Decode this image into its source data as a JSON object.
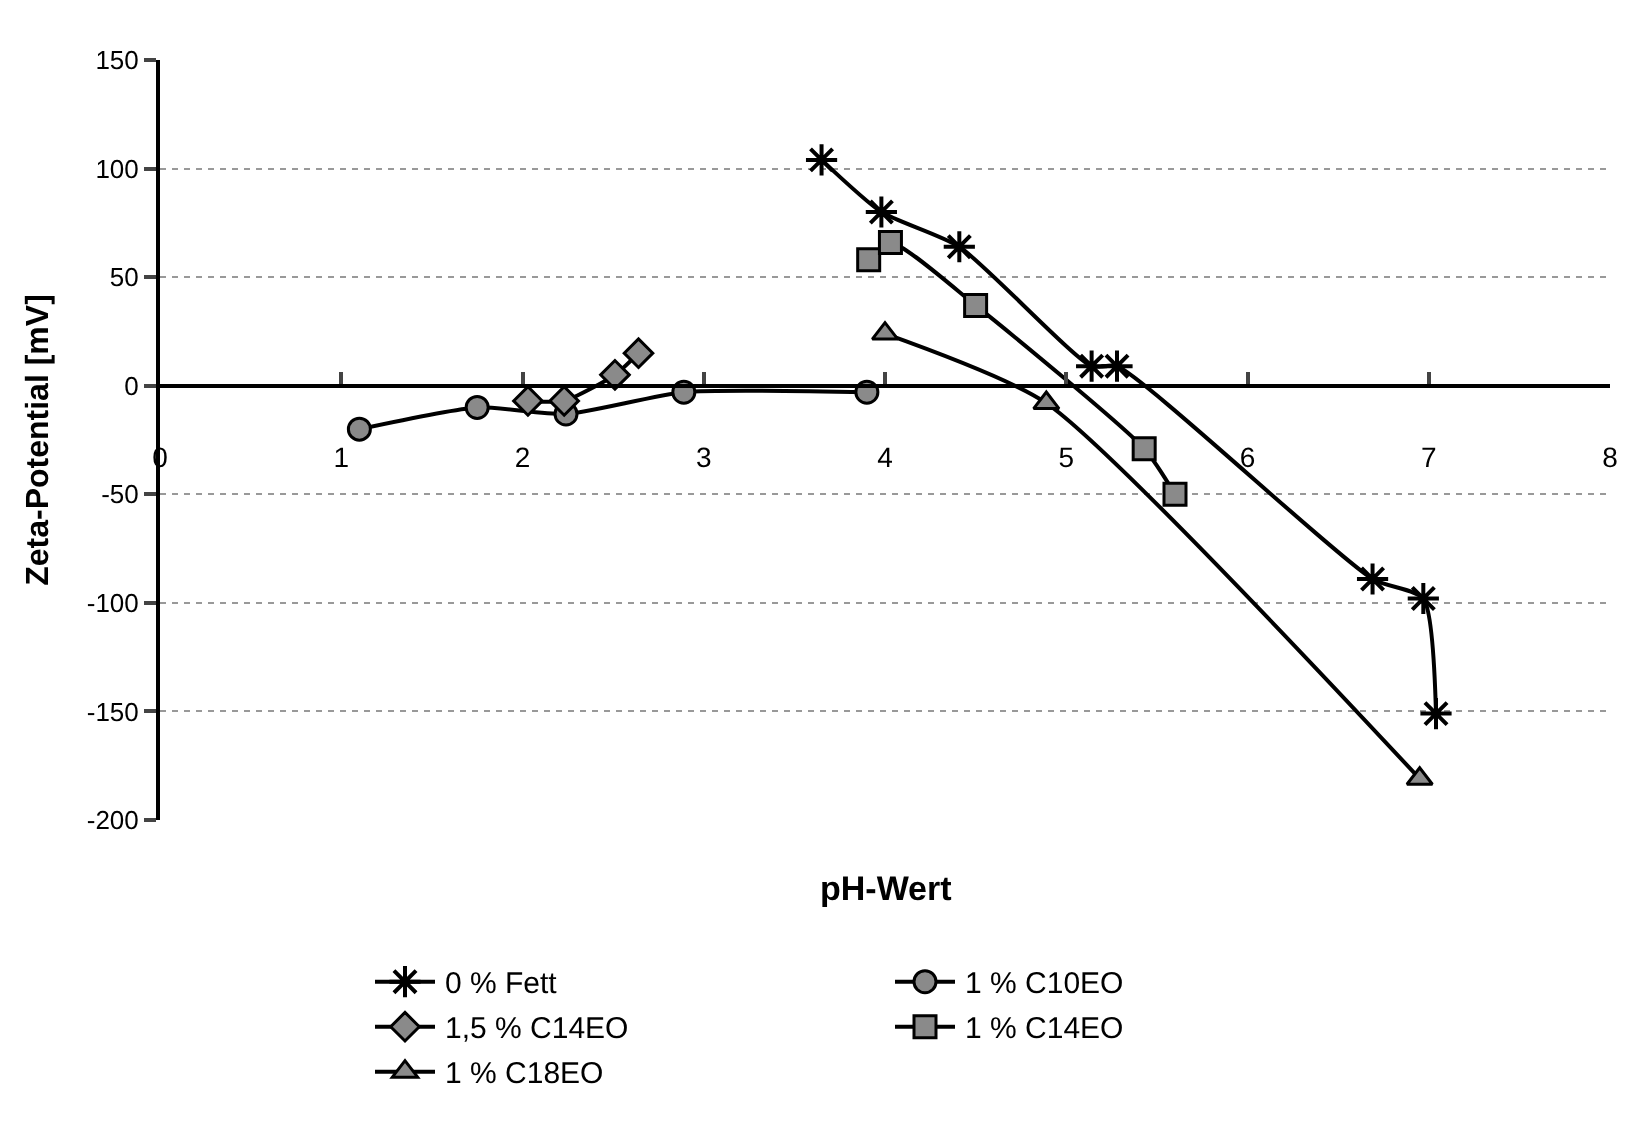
{
  "chart_data": {
    "type": "line",
    "xlabel": "pH-Wert",
    "ylabel": "Zeta-Potential [mV]",
    "xlim": [
      0,
      8
    ],
    "xticks": [
      0,
      1,
      2,
      3,
      4,
      5,
      6,
      7,
      8
    ],
    "ylim": [
      -200,
      150
    ],
    "yticks": [
      -200,
      -150,
      -100,
      -50,
      0,
      50,
      100,
      150
    ],
    "grid": "y",
    "legend": "bottom",
    "series": [
      {
        "name": "0 % Fett",
        "color": "#000000",
        "marker": "cross",
        "x": [
          3.65,
          3.98,
          4.41,
          5.14,
          5.28,
          6.69,
          6.97,
          7.04
        ],
        "values": [
          104,
          80,
          64,
          9,
          9,
          -89,
          -98,
          -151
        ]
      },
      {
        "name": "1 % C10EO",
        "color": "#000000",
        "marker": "circle",
        "x": [
          1.1,
          1.75,
          2.24,
          2.89,
          3.9
        ],
        "values": [
          -20,
          -10,
          -13,
          -3,
          -3
        ]
      },
      {
        "name": "1,5 % C14EO",
        "color": "#000000",
        "marker": "diamond",
        "x": [
          2.03,
          2.23,
          2.51,
          2.64
        ],
        "values": [
          -7,
          -7,
          5,
          15
        ]
      },
      {
        "name": "1 % C14EO",
        "color": "#000000",
        "marker": "square",
        "x": [
          3.91,
          4.03,
          4.5,
          5.43,
          5.6
        ],
        "values": [
          58,
          66,
          37,
          -29,
          -50
        ]
      },
      {
        "name": "1 % C18EO",
        "color": "#000000",
        "marker": "triangle",
        "x": [
          4.0,
          4.89,
          6.95
        ],
        "values": [
          24,
          -8,
          -181
        ]
      }
    ]
  }
}
